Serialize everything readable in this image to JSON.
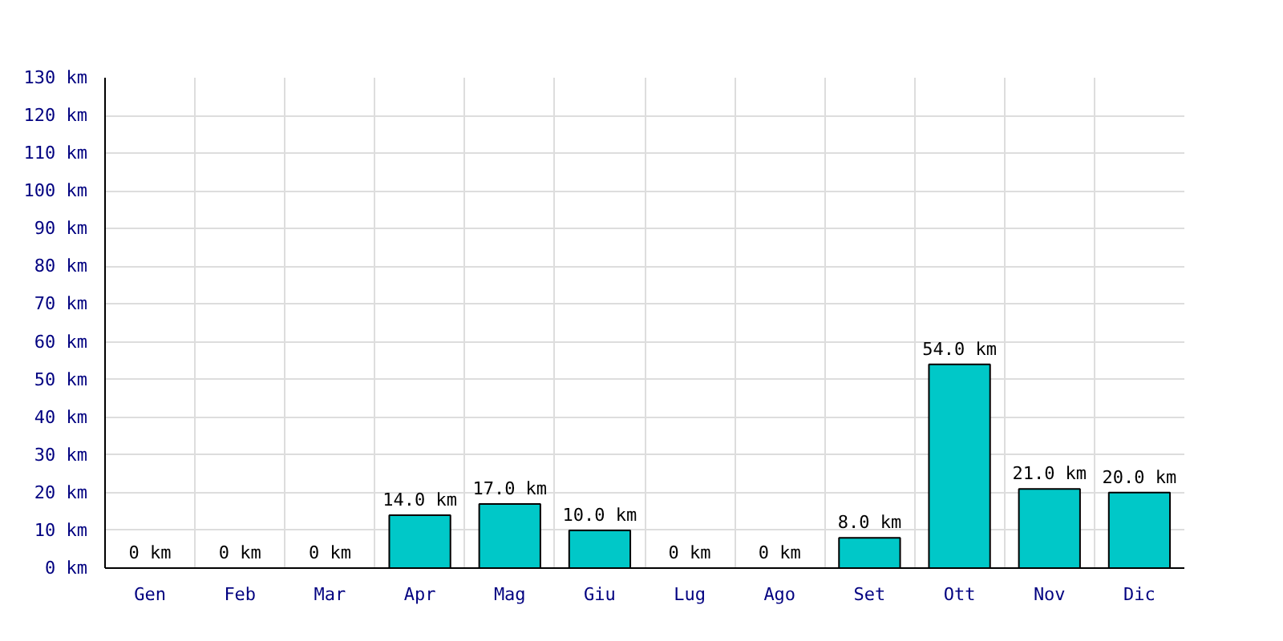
{
  "chart_data": {
    "type": "bar",
    "categories": [
      "Gen",
      "Feb",
      "Mar",
      "Apr",
      "Mag",
      "Giu",
      "Lug",
      "Ago",
      "Set",
      "Ott",
      "Nov",
      "Dic"
    ],
    "values": [
      0,
      0,
      0,
      14,
      17,
      10,
      0,
      0,
      8,
      54,
      21,
      20
    ],
    "value_labels": [
      "0 km",
      "0 km",
      "0 km",
      "14.0 km",
      "17.0 km",
      "10.0 km",
      "0 km",
      "0 km",
      "8.0 km",
      "54.0 km",
      "21.0 km",
      "20.0 km"
    ],
    "color": "#00c8c8",
    "ylim": [
      0,
      130
    ],
    "yticks": [
      {
        "value": 0,
        "label": "0 km"
      },
      {
        "value": 10,
        "label": "10 km"
      },
      {
        "value": 20,
        "label": "20 km"
      },
      {
        "value": 30,
        "label": "30 km"
      },
      {
        "value": 40,
        "label": "40 km"
      },
      {
        "value": 50,
        "label": "50 km"
      },
      {
        "value": 60,
        "label": "60 km"
      },
      {
        "value": 70,
        "label": "70 km"
      },
      {
        "value": 80,
        "label": "80 km"
      },
      {
        "value": 90,
        "label": "90 km"
      },
      {
        "value": 100,
        "label": "100 km"
      },
      {
        "value": 110,
        "label": "110 km"
      },
      {
        "value": 120,
        "label": "120 km"
      },
      {
        "value": 130,
        "label": "130 km"
      }
    ],
    "grid": true
  }
}
